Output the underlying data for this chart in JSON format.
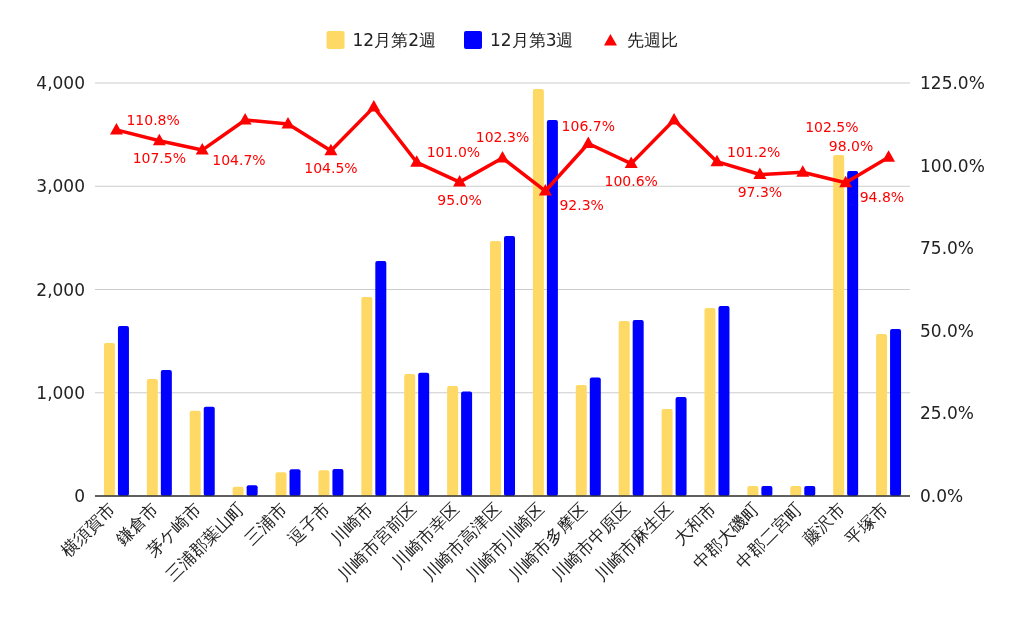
{
  "chart_data": {
    "type": "bar",
    "categories": [
      "横須賀市",
      "鎌倉市",
      "茅ケ崎市",
      "三浦郡葉山町",
      "三浦市",
      "逗子市",
      "川崎市",
      "川崎市宮前区",
      "川崎市幸区",
      "川崎市高津区",
      "川崎市川崎区",
      "川崎市多摩区",
      "川崎市中原区",
      "川崎市麻生区",
      "大和市",
      "中郡大磯町",
      "中郡二宮町",
      "藤沢市",
      "平塚市"
    ],
    "series": [
      {
        "name": "12月第2週",
        "color": "#ffd966",
        "values": [
          1482,
          1133,
          825,
          90,
          230,
          250,
          1927,
          1182,
          1065,
          2470,
          3942,
          1075,
          1695,
          843,
          1821,
          97,
          97,
          3303,
          1569
        ]
      },
      {
        "name": "12月第3週",
        "color": "#0000ff",
        "values": [
          1646,
          1220,
          864,
          105,
          259,
          261,
          2276,
          1194,
          1012,
          2518,
          3642,
          1147,
          1705,
          959,
          1840,
          97,
          97,
          3148,
          1617
        ]
      },
      {
        "name": "先週比",
        "type": "line",
        "axis": "y2",
        "color": "#ff0000",
        "marker": "triangle",
        "values": [
          110.8,
          107.5,
          104.7,
          113.8,
          112.6,
          104.5,
          117.7,
          101.0,
          95.0,
          102.3,
          92.3,
          106.7,
          100.6,
          113.8,
          101.2,
          97.3,
          98.0,
          94.8,
          102.5
        ],
        "value_labels": [
          "110.8%",
          "107.5%",
          "104.7%",
          null,
          null,
          "104.5%",
          null,
          "101.0%",
          "95.0%",
          "102.3%",
          "92.3%",
          "106.7%",
          "100.6%",
          null,
          "101.2%",
          "97.3%",
          "98.0%",
          "94.8%",
          "102.5%"
        ]
      }
    ],
    "ylim": [
      0,
      4000
    ],
    "yticks": [
      {
        "value": 0,
        "label": "0"
      },
      {
        "value": 1000,
        "label": "1,000"
      },
      {
        "value": 2000,
        "label": "2,000"
      },
      {
        "value": 3000,
        "label": "3,000"
      },
      {
        "value": 4000,
        "label": "4,000"
      }
    ],
    "y2lim": [
      0,
      125
    ],
    "y2ticks": [
      {
        "value": 0,
        "label": "0.0%"
      },
      {
        "value": 25,
        "label": "25.0%"
      },
      {
        "value": 50,
        "label": "50.0%"
      },
      {
        "value": 75,
        "label": "75.0%"
      },
      {
        "value": 100,
        "label": "100.0%"
      },
      {
        "value": 125,
        "label": "125.0%"
      }
    ],
    "grid": "y",
    "legend": "top"
  }
}
